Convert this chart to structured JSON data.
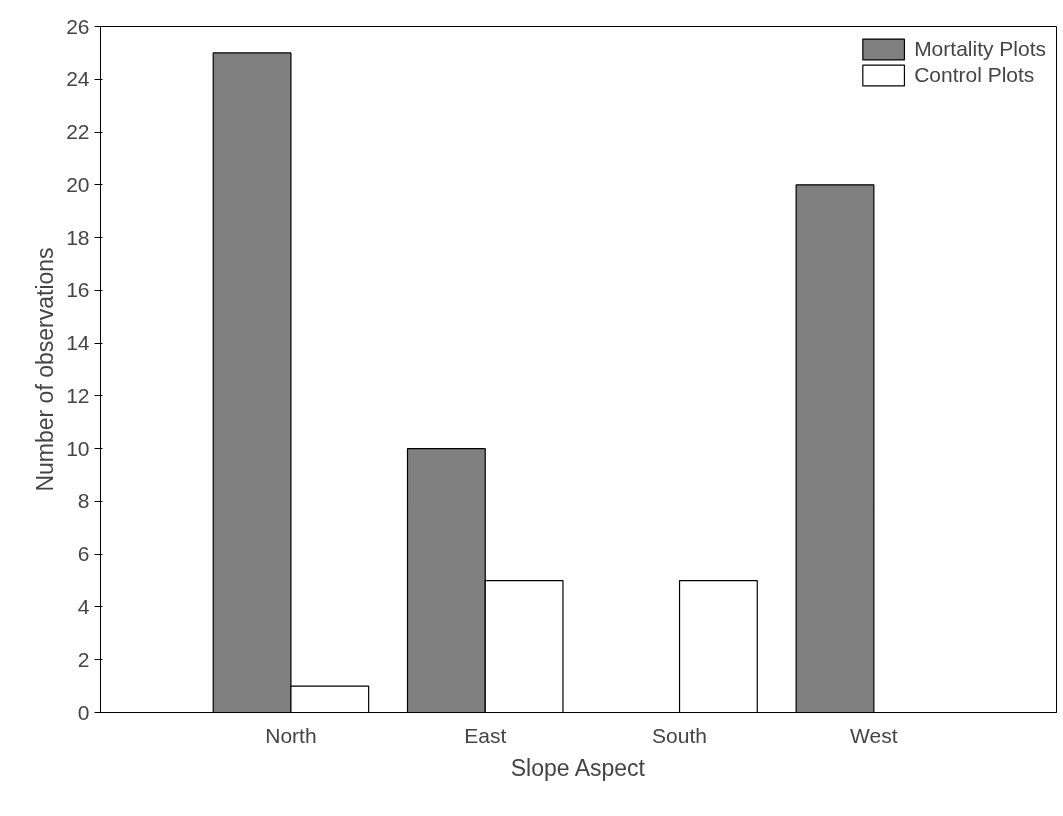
{
  "chart_data": {
    "type": "bar",
    "xlabel": "Slope Aspect",
    "ylabel": "Number of observations",
    "categories": [
      "North",
      "East",
      "South",
      "West"
    ],
    "series": [
      {
        "name": "Mortality Plots",
        "color": "#808080",
        "values": [
          25,
          10,
          0,
          20
        ]
      },
      {
        "name": "Control Plots",
        "color": "#ffffff",
        "values": [
          1,
          5,
          5,
          0
        ]
      }
    ],
    "ylim": [
      0,
      26
    ],
    "yticks": [
      0,
      2,
      4,
      6,
      8,
      10,
      12,
      14,
      16,
      18,
      20,
      22,
      24,
      26
    ],
    "grid": false,
    "legend": "top right"
  }
}
